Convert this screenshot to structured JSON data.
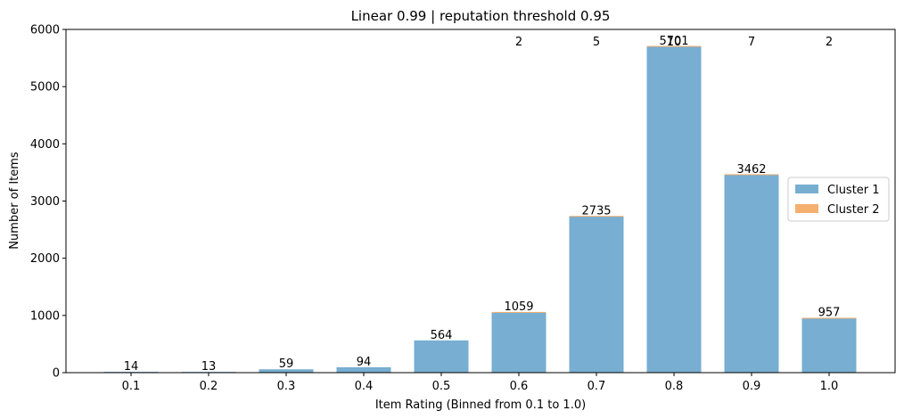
{
  "chart_data": {
    "type": "bar",
    "title": "Linear 0.99 | reputation threshold 0.95",
    "xlabel": "Item Rating (Binned from 0.1 to 1.0)",
    "ylabel": "Number of Items",
    "categories": [
      "0.1",
      "0.2",
      "0.3",
      "0.4",
      "0.5",
      "0.6",
      "0.7",
      "0.8",
      "0.9",
      "1.0"
    ],
    "ylim": [
      0,
      6000
    ],
    "yticks": [
      "0",
      "1000",
      "2000",
      "3000",
      "4000",
      "5000",
      "6000"
    ],
    "grid": false,
    "legend_position": "center-right",
    "series": [
      {
        "name": "Cluster 1",
        "color": "#77aed1",
        "values": [
          14,
          13,
          59,
          94,
          564,
          1059,
          2735,
          5701,
          3462,
          957
        ],
        "labels": [
          "14",
          "13",
          "59",
          "94",
          "564",
          "1059",
          "2735",
          "5701",
          "3462",
          "957"
        ]
      },
      {
        "name": "Cluster 2",
        "color": "#f5b06f",
        "values": [
          0,
          0,
          0,
          0,
          0,
          2,
          5,
          10,
          7,
          2
        ],
        "labels": [
          "",
          "",
          "",
          "",
          "",
          "2",
          "5",
          "10",
          "7",
          "2"
        ]
      }
    ]
  }
}
